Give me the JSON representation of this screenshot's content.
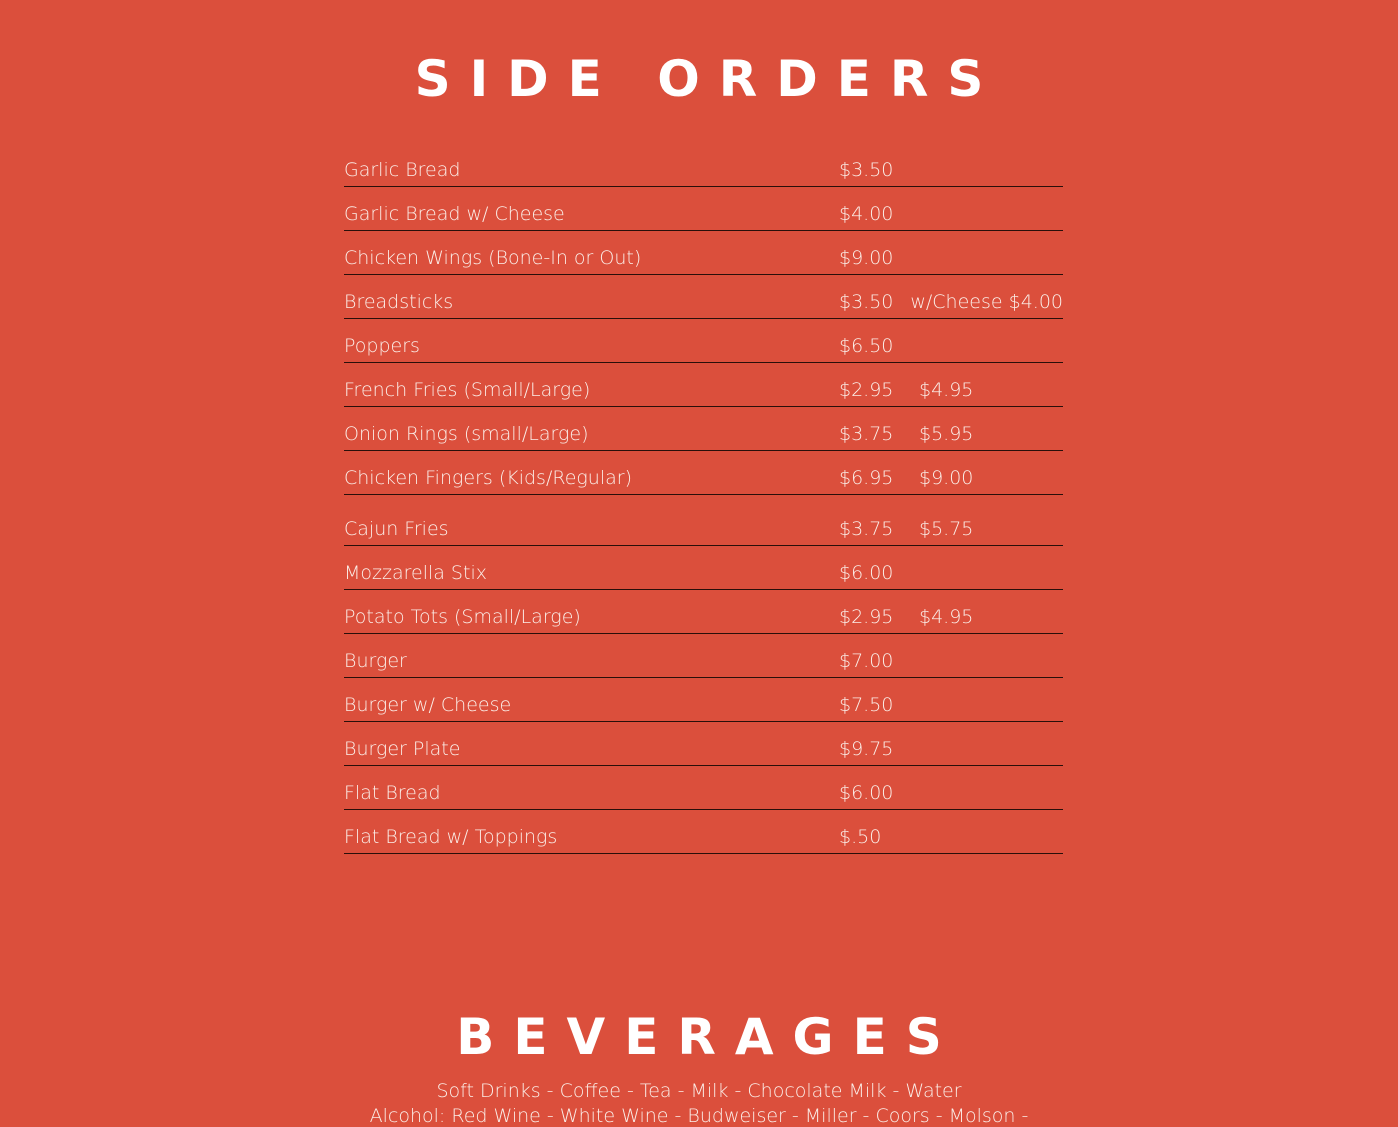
{
  "side_orders": {
    "title": "SIDE ORDERS",
    "items": [
      {
        "name": "Garlic Bread",
        "price": "$3.50",
        "price2": "",
        "extra": ""
      },
      {
        "name": "Garlic Bread w/ Cheese",
        "price": "$4.00",
        "price2": "",
        "extra": ""
      },
      {
        "name": "Chicken Wings (Bone-In or Out)",
        "price": "$9.00",
        "price2": "",
        "extra": ""
      },
      {
        "name": "Breadsticks",
        "price": "$3.50",
        "price2": "",
        "extra": "w/Cheese $4.00"
      },
      {
        "name": "Poppers",
        "price": "$6.50",
        "price2": "",
        "extra": ""
      },
      {
        "name": "French Fries (Small/Large)",
        "price": "$2.95",
        "price2": "$4.95",
        "extra": ""
      },
      {
        "name": "Onion Rings (small/Large)",
        "price": "$3.75",
        "price2": "$5.95",
        "extra": ""
      },
      {
        "name": "Chicken Fingers (Kids/Regular)",
        "price": "$6.95",
        "price2": "$9.00",
        "extra": ""
      },
      {
        "name": "Cajun Fries",
        "price": "$3.75",
        "price2": "$5.75",
        "extra": ""
      },
      {
        "name": "Mozzarella Stix",
        "price": "$6.00",
        "price2": "",
        "extra": ""
      },
      {
        "name": "Potato Tots  (Small/Large)",
        "price": "$2.95",
        "price2": "$4.95",
        "extra": ""
      },
      {
        "name": "Burger",
        "price": "$7.00",
        "price2": "",
        "extra": ""
      },
      {
        "name": "Burger w/ Cheese",
        "price": "$7.50",
        "price2": "",
        "extra": ""
      },
      {
        "name": "Burger Plate",
        "price": "$9.75",
        "price2": "",
        "extra": ""
      },
      {
        "name": "Flat Bread",
        "price": "$6.00",
        "price2": "",
        "extra": ""
      },
      {
        "name": "Flat Bread w/ Toppings",
        "price": "$.50",
        "price2": "",
        "extra": ""
      }
    ]
  },
  "beverages": {
    "title": "BEVERAGES",
    "line1": "Soft Drinks - Coffee - Tea - Milk - Chocolate Milk - Water",
    "line2": "Alcohol: Red Wine - White Wine - Budweiser - Miller - Coors - Molson -"
  },
  "colors": {
    "background": "#db4f3c",
    "text": "#fbeee8",
    "rule": "#2a0f0a"
  }
}
